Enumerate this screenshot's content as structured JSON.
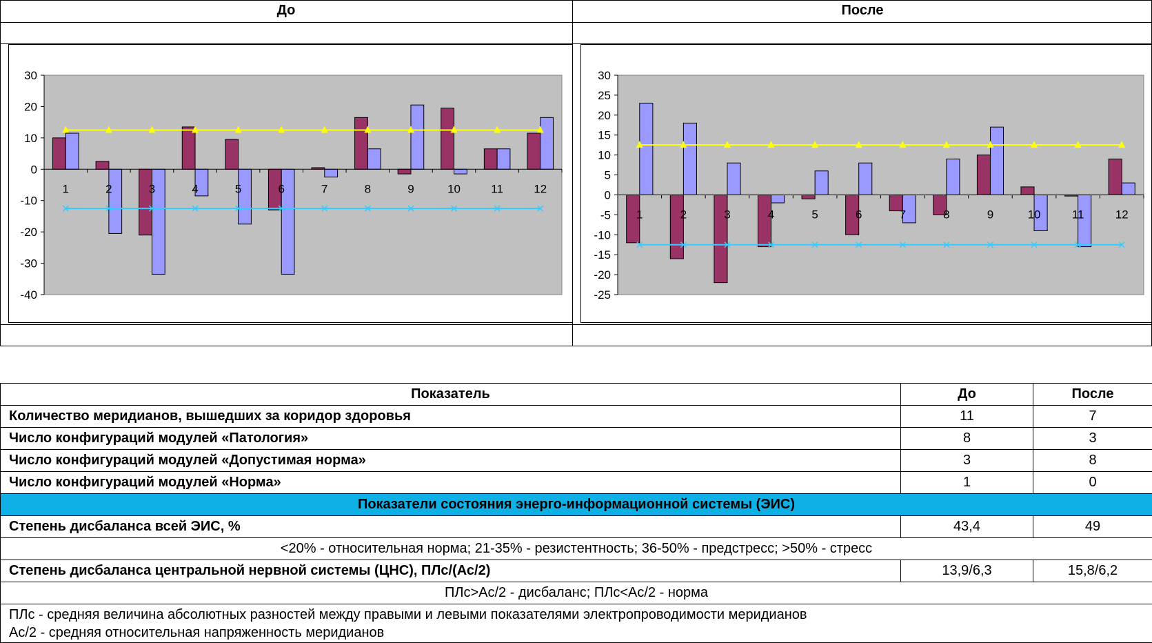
{
  "headers": {
    "before": "До",
    "after": "После"
  },
  "colors": {
    "series1": "#993366",
    "series2": "#9999ff",
    "upper": "#ffff00",
    "lower": "#33ccff",
    "plot_bg": "#c0c0c0",
    "section_bg": "#0eb0e6"
  },
  "chart_data": [
    {
      "type": "bar",
      "categories": [
        "1",
        "2",
        "3",
        "4",
        "5",
        "6",
        "7",
        "8",
        "9",
        "10",
        "11",
        "12"
      ],
      "series": [
        {
          "values": [
            10,
            2.5,
            -21,
            13.5,
            9.5,
            -13,
            0.5,
            16.5,
            -1.5,
            19.5,
            6.5,
            11.5
          ]
        },
        {
          "values": [
            11.5,
            -20.5,
            -33.5,
            -8.5,
            -17.5,
            -33.5,
            -2.5,
            6.5,
            20.5,
            -1.5,
            6.5,
            16.5
          ]
        }
      ],
      "corridor": {
        "upper": 12.5,
        "lower": -12.5
      },
      "y_ticks": [
        "30",
        "20",
        "10",
        "0",
        "-10",
        "-20",
        "-30",
        "-40"
      ],
      "ylim": [
        -40,
        30
      ]
    },
    {
      "type": "bar",
      "categories": [
        "1",
        "2",
        "3",
        "4",
        "5",
        "6",
        "7",
        "8",
        "9",
        "10",
        "11",
        "12"
      ],
      "series": [
        {
          "values": [
            -12,
            -16,
            -22,
            -13,
            -1,
            -10,
            -4,
            -5,
            10,
            2,
            -0.3,
            9
          ]
        },
        {
          "values": [
            23,
            18,
            8,
            -2,
            6,
            8,
            -7,
            9,
            17,
            -9,
            -13,
            3
          ]
        }
      ],
      "corridor": {
        "upper": 12.5,
        "lower": -12.5
      },
      "y_ticks": [
        "30",
        "25",
        "20",
        "15",
        "10",
        "5",
        "0",
        "-5",
        "-10",
        "-15",
        "-20",
        "-25"
      ],
      "ylim": [
        -25,
        30
      ]
    }
  ],
  "table": {
    "head": {
      "label": "Показатель",
      "before": "До",
      "after": "После"
    },
    "rows": [
      {
        "label": "Количество меридианов, вышедших за коридор здоровья",
        "before": "11",
        "after": "7"
      },
      {
        "label": "Число конфигураций модулей «Патология»",
        "before": "8",
        "after": "3"
      },
      {
        "label": "Число конфигураций модулей «Допустимая норма»",
        "before": "3",
        "after": "8"
      },
      {
        "label": "Число конфигураций модулей «Норма»",
        "before": "1",
        "after": "0"
      }
    ],
    "section_title": "Показатели состояния энерго-информационной системы (ЭИС)",
    "eis": {
      "label": "Степень дисбаланса всей ЭИС, %",
      "before": "43,4",
      "after": "49"
    },
    "eis_note": "<20% - относительная норма; 21-35% - резистентность; 36-50% - предстресс; >50% - стресс",
    "cns": {
      "label": "Степень дисбаланса центральной нервной системы (ЦНС), ПЛс/(Ас/2)",
      "before": "13,9/6,3",
      "after": "15,8/6,2"
    },
    "cns_note": "ПЛс>Ас/2 - дисбаланс; ПЛс<Ас/2 - норма",
    "def1": "ПЛс - средняя величина абсолютных разностей между правыми и левыми показателями электропроводимости меридианов",
    "def2": "Ас/2 - средняя относительная напряженность меридианов"
  }
}
